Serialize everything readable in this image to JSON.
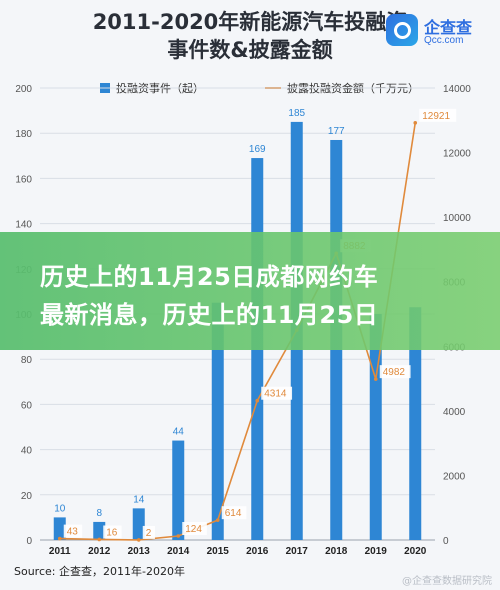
{
  "title_lines": [
    "2011-2020年新能源汽车投融资",
    "事件数&披露金额"
  ],
  "brand": {
    "name": "企查查",
    "url": "Qcc.com"
  },
  "overlay_lines": [
    "历史上的11月25日成都网约车",
    "最新消息，历史上的11月25日"
  ],
  "source": "Source: 企查查，2011年-2020年",
  "watermark": "@企查查数据研究院",
  "colors": {
    "bar": "#2e86d4",
    "line": "#e08a3c",
    "grid": "#d9dee6"
  },
  "chart_data": {
    "type": "bar",
    "categories": [
      "2011",
      "2012",
      "2013",
      "2014",
      "2015",
      "2016",
      "2017",
      "2018",
      "2019",
      "2020"
    ],
    "series": [
      {
        "name": "投融资事件（起）",
        "type": "bar",
        "axis": "left",
        "values": [
          10,
          8,
          14,
          44,
          105,
          169,
          185,
          177,
          100,
          103
        ]
      },
      {
        "name": "披露投融资金额（千万元）",
        "type": "line",
        "axis": "right",
        "values": [
          43,
          16,
          2,
          124,
          614,
          4314,
          6500,
          8882,
          4982,
          12921
        ]
      }
    ],
    "bar_labels": [
      "10",
      "8",
      "14",
      "44",
      "",
      "169",
      "185",
      "177",
      "",
      ""
    ],
    "line_labels": [
      "43",
      "16",
      "2",
      "124",
      "614",
      "4314",
      "",
      "8882",
      "4982",
      "12921"
    ],
    "ylim_left": [
      0,
      200
    ],
    "ylim_right": [
      0,
      14000
    ],
    "left_ticks": [
      0,
      20,
      40,
      60,
      80,
      100,
      120,
      140,
      160,
      180,
      200
    ],
    "right_ticks": [
      0,
      2000,
      4000,
      6000,
      8000,
      10000,
      12000,
      14000
    ],
    "grid": true,
    "legend_position": "top"
  }
}
